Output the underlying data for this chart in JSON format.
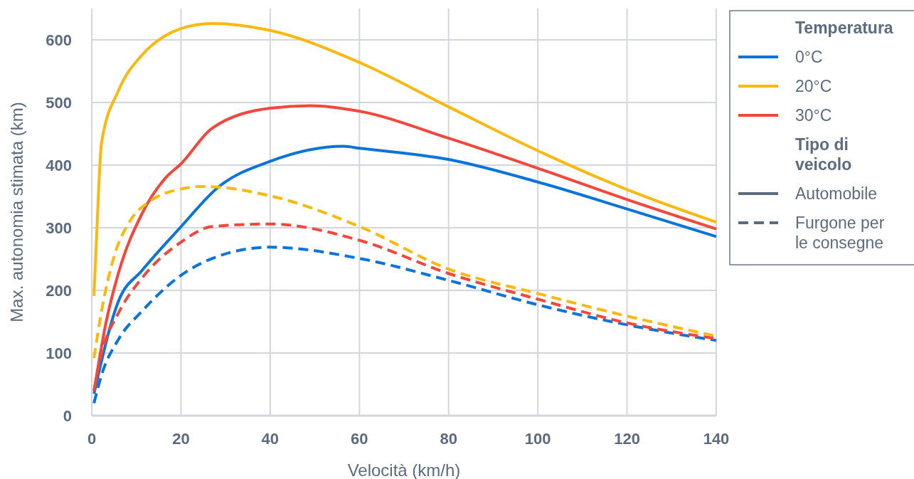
{
  "chart_data": {
    "type": "line",
    "xlabel": "Velocità (km/h)",
    "ylabel": "Max. autonomia stimata (km)",
    "legend_title": "Temperatura",
    "annotations": [
      "Tipo di veicolo",
      "Automobile",
      "Furgone per le consegne"
    ],
    "xlim": [
      0,
      140
    ],
    "ylim": [
      0,
      650
    ],
    "xticks": [
      0,
      20,
      40,
      60,
      80,
      100,
      120,
      140
    ],
    "yticks": [
      0,
      100,
      200,
      300,
      400,
      500,
      600
    ],
    "grid": true,
    "legend": "right",
    "series": [
      {
        "name": "0°C",
        "color": "#0a74da",
        "line_style": "solid",
        "x": [
          0.5,
          6,
          11.3,
          19.8,
          28.4,
          40,
          56.5,
          60,
          80,
          100,
          120,
          140
        ],
        "values": [
          35,
          183,
          232,
          300,
          365,
          406,
          430,
          427,
          409,
          373,
          330,
          286
        ]
      },
      {
        "name": "20°C",
        "color": "#fbb80f",
        "line_style": "solid",
        "x": [
          0.5,
          1.1,
          2.2,
          6,
          11.3,
          16.6,
          20,
          27,
          40,
          60,
          80,
          100,
          120,
          140
        ],
        "values": [
          191,
          289,
          436,
          519,
          576,
          607,
          618,
          626,
          615,
          564,
          493,
          423,
          361,
          309
        ]
      },
      {
        "name": "30°C",
        "color": "#f4473b",
        "line_style": "solid",
        "x": [
          0.5,
          3.3,
          6,
          11.3,
          16.6,
          20,
          27,
          40,
          49,
          60,
          80,
          100,
          120,
          140
        ],
        "values": [
          39,
          152,
          228,
          323,
          380,
          402,
          459,
          491,
          495,
          486,
          443,
          395,
          345,
          298
        ]
      },
      {
        "color": "#0a74da",
        "line_style": "dashed",
        "x": [
          0.5,
          2.2,
          6,
          11.3,
          20,
          27,
          40,
          60,
          80,
          100,
          120,
          140
        ],
        "values": [
          20,
          65,
          122,
          167,
          224,
          251,
          269,
          251,
          216,
          177,
          145,
          120
        ]
      },
      {
        "color": "#fbb80f",
        "line_style": "dashed",
        "x": [
          0.5,
          2.2,
          5,
          8.6,
          13,
          20,
          25,
          40,
          60,
          80,
          100,
          120,
          140
        ],
        "values": [
          92,
          167,
          254,
          311,
          342,
          362,
          366,
          351,
          302,
          234,
          195,
          159,
          127
        ]
      },
      {
        "color": "#f4473b",
        "line_style": "dashed",
        "x": [
          0.5,
          2.2,
          6,
          11.3,
          20,
          27,
          40,
          60,
          80,
          100,
          120,
          140
        ],
        "values": [
          40,
          99,
          164,
          220,
          277,
          302,
          306,
          280,
          227,
          186,
          148,
          123
        ]
      }
    ]
  }
}
